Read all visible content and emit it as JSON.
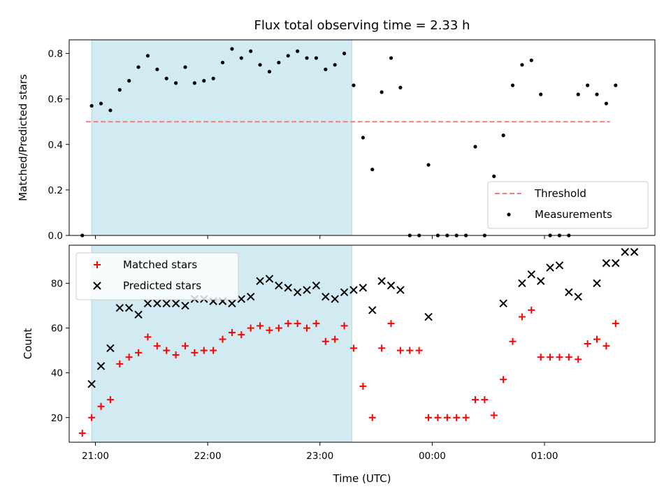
{
  "chart_data": [
    {
      "type": "scatter",
      "title": "Flux total observing time = 2.33 h",
      "xlabel": "",
      "ylabel": "Matched/Predicted stars",
      "ylim": [
        0,
        0.86
      ],
      "yticks": [
        "0.0",
        "0.2",
        "0.4",
        "0.6",
        "0.8"
      ],
      "yticks_values": [
        0,
        0.2,
        0.4,
        0.6,
        0.8
      ],
      "xlim": [
        "20:46",
        "01:59"
      ],
      "xticks_hidden": true,
      "shaded_span": [
        "20:58",
        "23:17"
      ],
      "shaded_color": "#add8e6",
      "legend_position": "lower-right",
      "series": [
        {
          "name": "Threshold",
          "kind": "dashed-line",
          "color": "#f08080",
          "x": [
            "20:55",
            "01:35"
          ],
          "y": [
            0.5,
            0.5
          ]
        },
        {
          "name": "Measurements",
          "kind": "dot",
          "color": "#000000",
          "x": [
            "20:53",
            "20:58",
            "21:03",
            "21:08",
            "21:13",
            "21:18",
            "21:23",
            "21:28",
            "21:33",
            "21:38",
            "21:43",
            "21:48",
            "21:53",
            "21:58",
            "22:03",
            "22:08",
            "22:13",
            "22:18",
            "22:23",
            "22:28",
            "22:33",
            "22:38",
            "22:43",
            "22:48",
            "22:53",
            "22:58",
            "23:03",
            "23:08",
            "23:13",
            "23:18",
            "23:23",
            "23:28",
            "23:33",
            "23:38",
            "23:43",
            "23:48",
            "23:53",
            "23:58",
            "00:03",
            "00:08",
            "00:13",
            "00:18",
            "00:23",
            "00:28",
            "00:33",
            "00:38",
            "00:43",
            "00:48",
            "00:53",
            "00:58",
            "01:03",
            "01:08",
            "01:13",
            "01:18",
            "01:23",
            "01:28",
            "01:33",
            "01:38"
          ],
          "y": [
            0.0,
            0.57,
            0.58,
            0.55,
            0.64,
            0.68,
            0.74,
            0.79,
            0.73,
            0.69,
            0.67,
            0.74,
            0.67,
            0.68,
            0.69,
            0.76,
            0.82,
            0.78,
            0.81,
            0.75,
            0.72,
            0.76,
            0.79,
            0.81,
            0.78,
            0.78,
            0.73,
            0.75,
            0.8,
            0.66,
            0.43,
            0.29,
            0.63,
            0.78,
            0.65,
            0.0,
            0.0,
            0.31,
            0.0,
            0.0,
            0.0,
            0.0,
            0.39,
            0.0,
            0.26,
            0.44,
            0.66,
            0.75,
            0.77,
            0.62,
            0.0,
            0.0,
            0.0,
            0.62,
            0.66,
            0.62,
            0.58,
            0.66
          ]
        }
      ]
    },
    {
      "type": "scatter",
      "title": "",
      "xlabel": "Time (UTC)",
      "ylabel": "Count",
      "ylim": [
        9,
        97
      ],
      "yticks": [
        "20",
        "40",
        "60",
        "80"
      ],
      "yticks_values": [
        20,
        40,
        60,
        80
      ],
      "xlim": [
        "20:46",
        "01:59"
      ],
      "xticks": [
        "21:00",
        "22:00",
        "23:00",
        "00:00",
        "01:00"
      ],
      "shaded_span": [
        "20:58",
        "23:17"
      ],
      "shaded_color": "#add8e6",
      "legend_position": "upper-left",
      "series": [
        {
          "name": "Matched stars",
          "marker": "+",
          "color": "#ff0000",
          "x": [
            "20:53",
            "20:58",
            "21:03",
            "21:08",
            "21:13",
            "21:18",
            "21:23",
            "21:28",
            "21:33",
            "21:38",
            "21:43",
            "21:48",
            "21:53",
            "21:58",
            "22:03",
            "22:08",
            "22:13",
            "22:18",
            "22:23",
            "22:28",
            "22:33",
            "22:38",
            "22:43",
            "22:48",
            "22:53",
            "22:58",
            "23:03",
            "23:08",
            "23:13",
            "23:18",
            "23:23",
            "23:28",
            "23:33",
            "23:38",
            "23:43",
            "23:48",
            "23:53",
            "23:58",
            "00:03",
            "00:08",
            "00:13",
            "00:18",
            "00:23",
            "00:28",
            "00:33",
            "00:38",
            "00:43",
            "00:48",
            "00:53",
            "00:58",
            "01:03",
            "01:08",
            "01:13",
            "01:18",
            "01:23",
            "01:28",
            "01:33",
            "01:38"
          ],
          "y": [
            13,
            20,
            25,
            28,
            44,
            47,
            49,
            56,
            52,
            50,
            48,
            52,
            49,
            50,
            50,
            55,
            58,
            57,
            60,
            61,
            59,
            60,
            62,
            62,
            60,
            62,
            54,
            55,
            61,
            51,
            34,
            20,
            51,
            62,
            50,
            50,
            50,
            20,
            20,
            20,
            20,
            20,
            28,
            28,
            21,
            37,
            54,
            65,
            68,
            47,
            47,
            47,
            47,
            46,
            53,
            55,
            52,
            62
          ]
        },
        {
          "name": "Predicted stars",
          "marker": "x",
          "color": "#000000",
          "x": [
            "20:58",
            "21:03",
            "21:08",
            "21:13",
            "21:18",
            "21:23",
            "21:28",
            "21:33",
            "21:38",
            "21:43",
            "21:48",
            "21:53",
            "21:58",
            "22:03",
            "22:08",
            "22:13",
            "22:18",
            "22:23",
            "22:28",
            "22:33",
            "22:38",
            "22:43",
            "22:48",
            "22:53",
            "22:58",
            "23:03",
            "23:08",
            "23:13",
            "23:18",
            "23:23",
            "23:28",
            "23:33",
            "23:38",
            "23:43",
            "23:58",
            "00:38",
            "00:48",
            "00:53",
            "00:58",
            "01:03",
            "01:08",
            "01:13",
            "01:18",
            "01:28",
            "01:33",
            "01:38",
            "01:43",
            "01:48"
          ],
          "y": [
            35,
            43,
            51,
            69,
            69,
            66,
            71,
            71,
            71,
            71,
            70,
            73,
            73,
            72,
            72,
            71,
            73,
            74,
            81,
            82,
            79,
            78,
            76,
            77,
            79,
            74,
            73,
            76,
            77,
            78,
            68,
            81,
            79,
            77,
            65,
            71,
            80,
            84,
            81,
            87,
            88,
            76,
            74,
            80,
            89,
            89,
            94,
            94
          ]
        }
      ]
    }
  ]
}
